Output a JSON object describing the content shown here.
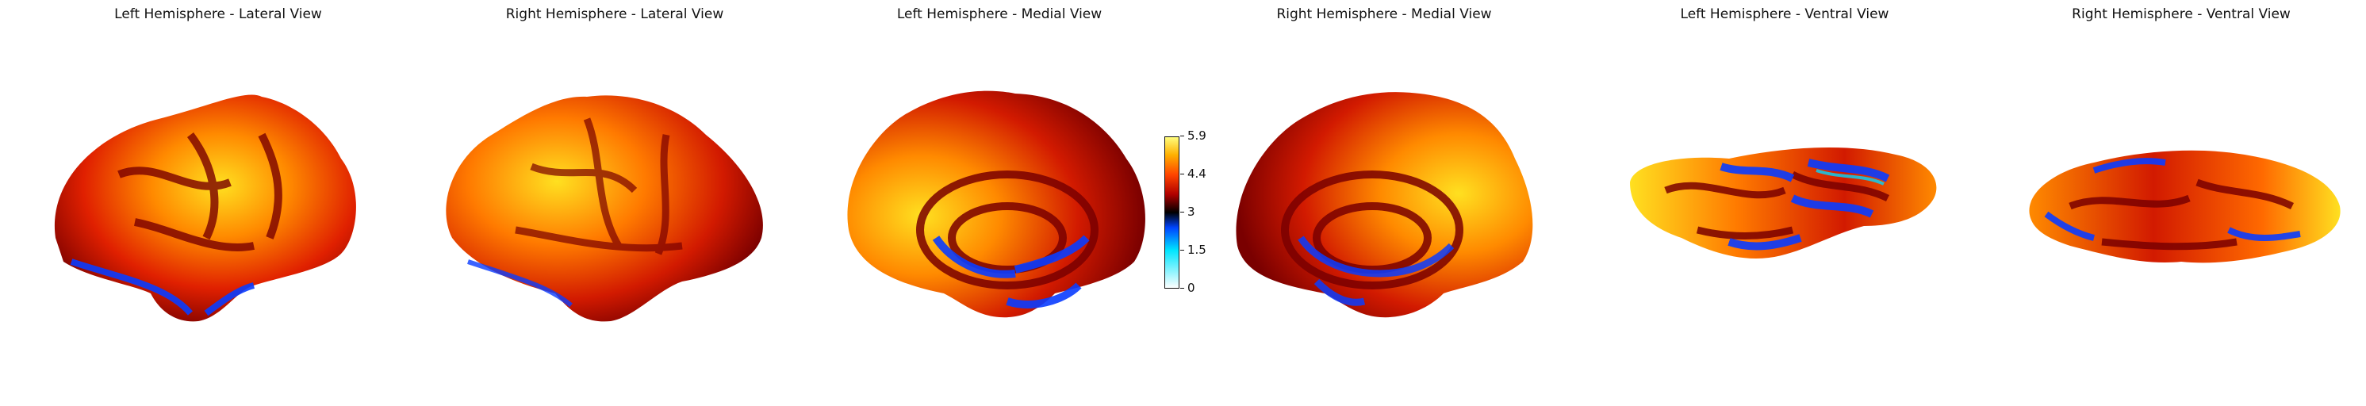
{
  "panels": [
    {
      "title": "Left Hemisphere - Lateral View"
    },
    {
      "title": "Right Hemisphere - Lateral View"
    },
    {
      "title": "Left Hemisphere - Medial View"
    },
    {
      "title": "Right Hemisphere - Medial View"
    },
    {
      "title": "Left Hemisphere - Ventral View"
    },
    {
      "title": "Right Hemisphere - Ventral View"
    }
  ],
  "colorbar": {
    "ticks": [
      "5.9",
      "4.4",
      "3",
      "1.5",
      "0"
    ],
    "colormap": [
      "#ffffff",
      "#00e5ff",
      "#0044ff",
      "#000000",
      "#b00000",
      "#ff4500",
      "#ffb000",
      "#ffff80"
    ]
  },
  "colors": {
    "hot_dark": "#7a0000",
    "hot_red": "#d21a00",
    "hot_orange": "#ff6a00",
    "hot_yellow": "#ffe020",
    "cold_blue": "#0a3cff",
    "cold_cyan": "#00d8ff"
  }
}
